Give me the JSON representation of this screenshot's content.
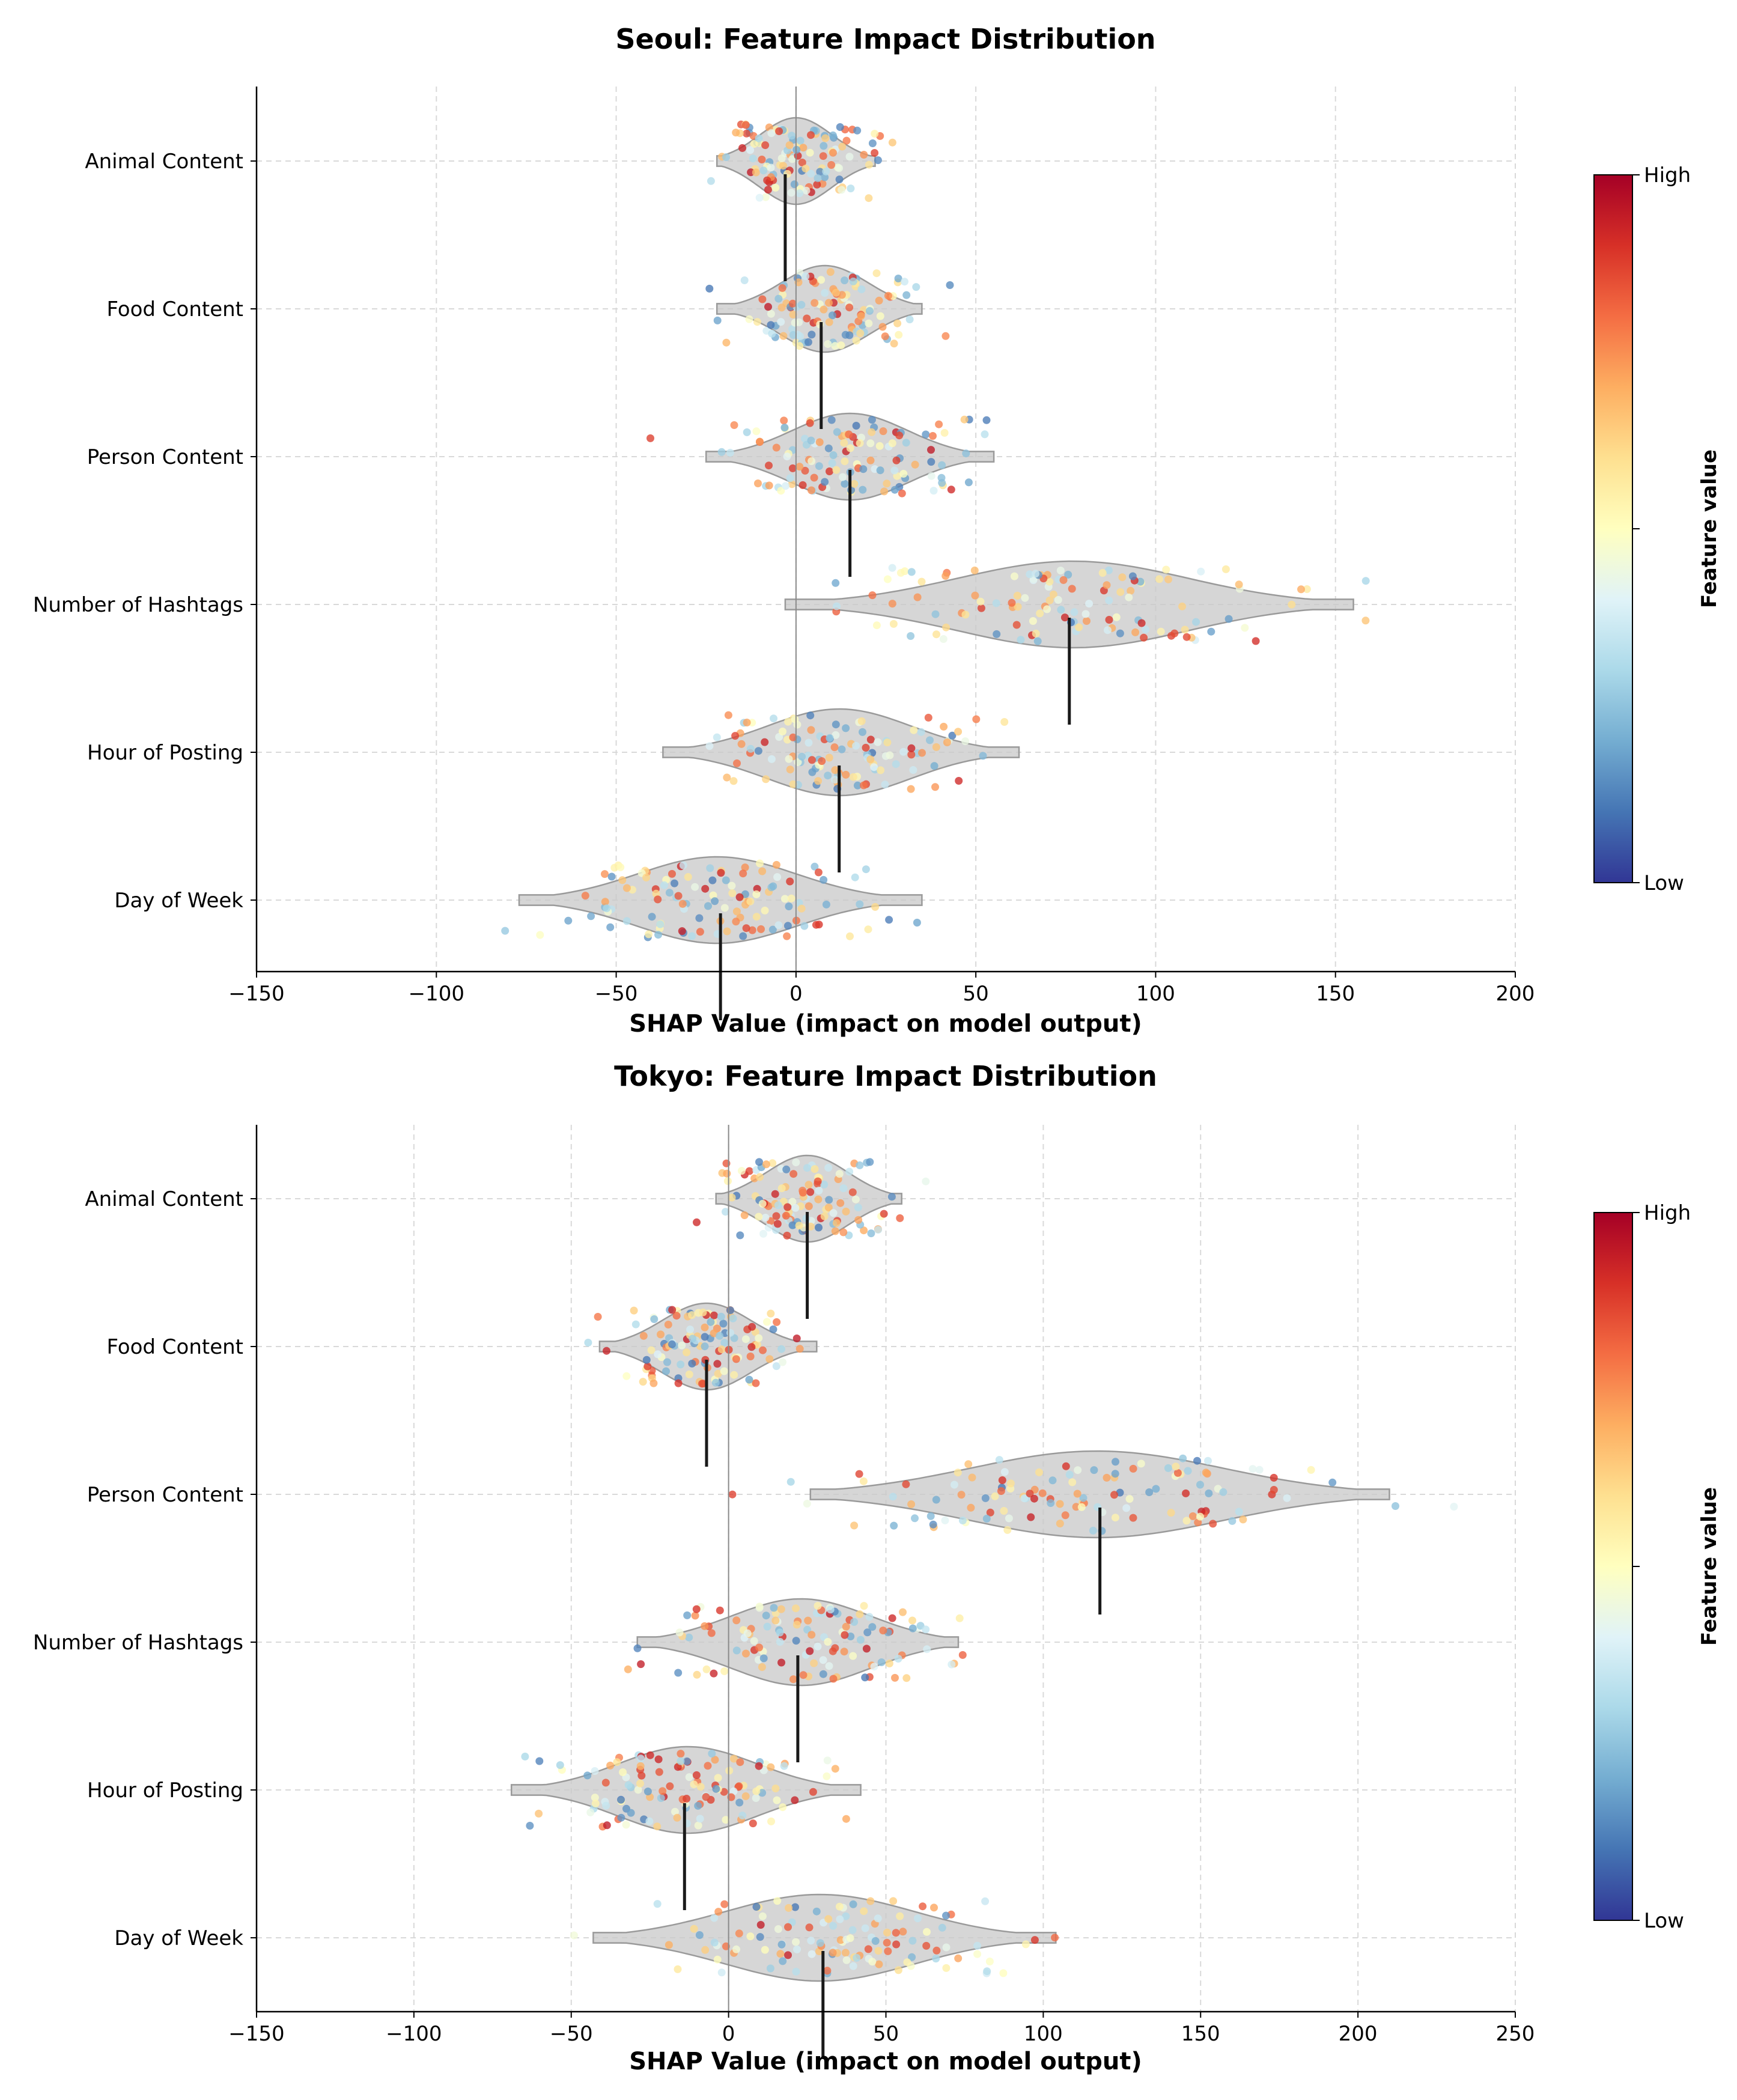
{
  "colors": {
    "violin_fill": "#c8c8c8",
    "violin_edge": "#9a9a9a",
    "median_line": "#1a1a1a",
    "grid": "#d9d9d9",
    "zero_line": "#8a8a8a",
    "colormap": [
      "#313695",
      "#4575b4",
      "#74add1",
      "#abd9e9",
      "#e0f3f8",
      "#ffffbf",
      "#fee090",
      "#fdae61",
      "#f46d43",
      "#d73027",
      "#a50026"
    ]
  },
  "chart_data": [
    {
      "type": "violin",
      "title": "Seoul: Feature Impact Distribution",
      "xlabel": "SHAP Value (impact on model output)",
      "ylabel": "",
      "xlim": [
        -150,
        200
      ],
      "xticks": [
        -150,
        -100,
        -50,
        0,
        50,
        100,
        150,
        200
      ],
      "xtick_labels": [
        "−150",
        "−100",
        "−50",
        "0",
        "50",
        "100",
        "150",
        "200"
      ],
      "grid": true,
      "colorbar": {
        "label": "Feature value",
        "high": "High",
        "low": "Low"
      },
      "features": [
        {
          "name": "Animal Content",
          "center": 0,
          "spread": 10,
          "violin_min": -22,
          "violin_max": 22,
          "median": -3
        },
        {
          "name": "Food Content",
          "center": 8,
          "spread": 12,
          "violin_min": -22,
          "violin_max": 35,
          "median": 7
        },
        {
          "name": "Person Content",
          "center": 15,
          "spread": 16,
          "violin_min": -25,
          "violin_max": 55,
          "median": 15
        },
        {
          "name": "Number of Hashtags",
          "center": 77,
          "spread": 32,
          "violin_min": -3,
          "violin_max": 155,
          "median": 76
        },
        {
          "name": "Hour of Posting",
          "center": 12,
          "spread": 20,
          "violin_min": -37,
          "violin_max": 62,
          "median": 12
        },
        {
          "name": "Day of Week",
          "center": -22,
          "spread": 22,
          "violin_min": -77,
          "violin_max": 35,
          "median": -21
        }
      ]
    },
    {
      "type": "violin",
      "title": "Tokyo: Feature Impact Distribution",
      "xlabel": "SHAP Value (impact on model output)",
      "ylabel": "",
      "xlim": [
        -150,
        250
      ],
      "xticks": [
        -150,
        -100,
        -50,
        0,
        50,
        100,
        150,
        200,
        250
      ],
      "xtick_labels": [
        "−150",
        "−100",
        "−50",
        "0",
        "50",
        "100",
        "150",
        "200",
        "250"
      ],
      "grid": true,
      "colorbar": {
        "label": "Feature value",
        "high": "High",
        "low": "Low"
      },
      "features": [
        {
          "name": "Animal Content",
          "center": 25,
          "spread": 13,
          "violin_min": -4,
          "violin_max": 55,
          "median": 25
        },
        {
          "name": "Food Content",
          "center": -7,
          "spread": 14,
          "violin_min": -41,
          "violin_max": 28,
          "median": -7
        },
        {
          "name": "Person Content",
          "center": 117,
          "spread": 40,
          "violin_min": 26,
          "violin_max": 210,
          "median": 118
        },
        {
          "name": "Number of Hashtags",
          "center": 23,
          "spread": 22,
          "violin_min": -29,
          "violin_max": 73,
          "median": 22
        },
        {
          "name": "Hour of Posting",
          "center": -13,
          "spread": 22,
          "violin_min": -69,
          "violin_max": 42,
          "median": -14
        },
        {
          "name": "Day of Week",
          "center": 29,
          "spread": 30,
          "violin_min": -43,
          "violin_max": 104,
          "median": 30
        }
      ]
    }
  ]
}
